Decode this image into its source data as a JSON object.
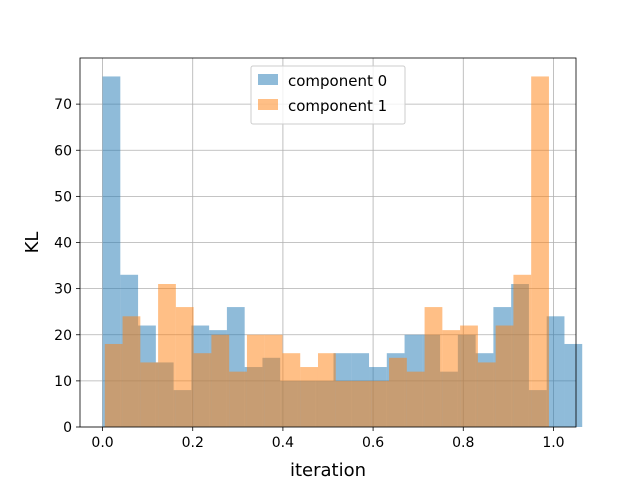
{
  "chart_data": {
    "type": "bar",
    "xlabel": "iteration",
    "ylabel": "KL",
    "xlim": [
      -0.05,
      1.05
    ],
    "ylim": [
      0,
      80
    ],
    "xticks": [
      "0.0",
      "0.2",
      "0.4",
      "0.6",
      "0.8",
      "1.0"
    ],
    "xtick_values": [
      0,
      0.2,
      0.4,
      0.6,
      0.8,
      1.0
    ],
    "yticks": [
      "0",
      "10",
      "20",
      "30",
      "40",
      "50",
      "60",
      "70"
    ],
    "ytick_values": [
      0,
      10,
      20,
      30,
      40,
      50,
      60,
      70
    ],
    "grid": true,
    "legend_position": "top-center",
    "series": [
      {
        "name": "component 0",
        "color": "#1f77b4",
        "alpha": 0.5,
        "bin_start": 0.0,
        "bin_width": 0.0394,
        "values": [
          76,
          33,
          22,
          14,
          8,
          22,
          21,
          26,
          13,
          15,
          10,
          10,
          10,
          16,
          16,
          13,
          16,
          20,
          20,
          12,
          20,
          16,
          26,
          31,
          8,
          24,
          18
        ]
      },
      {
        "name": "component 1",
        "color": "#ff7f0e",
        "alpha": 0.5,
        "bin_start": 0.005,
        "bin_width": 0.0394,
        "values": [
          18,
          24,
          14,
          31,
          26,
          16,
          20,
          12,
          20,
          20,
          16,
          13,
          16,
          10,
          10,
          10,
          15,
          12,
          26,
          21,
          22,
          14,
          22,
          33,
          76
        ]
      }
    ]
  }
}
